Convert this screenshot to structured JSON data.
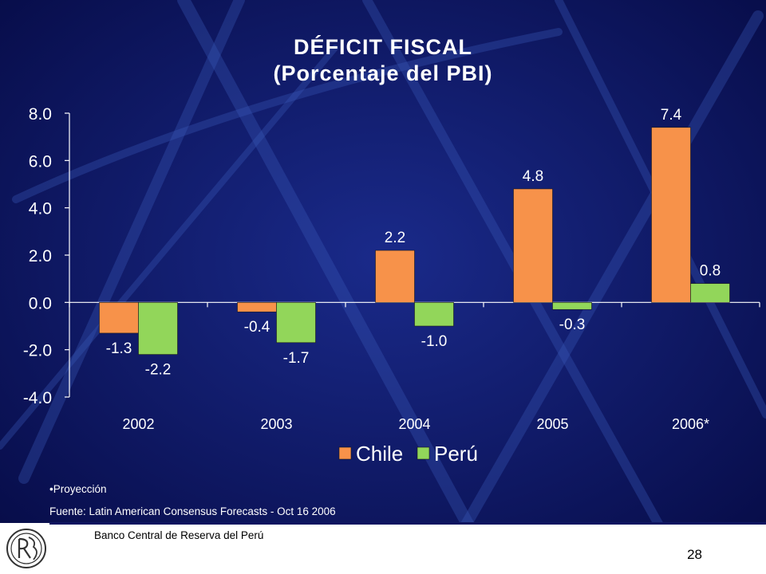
{
  "slide": {
    "title_line1": "DÉFICIT FISCAL",
    "title_line2": "(Porcentaje del PBI)",
    "note": "•Proyección",
    "source": "Fuente: Latin American Consensus Forecasts - Oct 16 2006",
    "bank": "Banco Central de Reserva del Perú",
    "page_number": "28"
  },
  "colors": {
    "background": "#0c1560",
    "chile": "#f7924a",
    "peru": "#92d65a"
  },
  "chart_data": {
    "type": "bar",
    "categories": [
      "2002",
      "2003",
      "2004",
      "2005",
      "2006*"
    ],
    "series": [
      {
        "name": "Chile",
        "values": [
          -1.3,
          -0.4,
          2.2,
          4.8,
          7.4
        ],
        "labels": [
          "-1.3",
          "-0.4",
          "2.2",
          "4.8",
          "7.4"
        ]
      },
      {
        "name": "Perú",
        "values": [
          -2.2,
          -1.7,
          -1.0,
          -0.3,
          0.8
        ],
        "labels": [
          "-2.2",
          "-1.7",
          "-1.0",
          "-0.3",
          "0.8"
        ]
      }
    ],
    "yticks": [
      "8.0",
      "6.0",
      "4.0",
      "2.0",
      "0.0",
      "-2.0",
      "-4.0"
    ],
    "ylim": [
      -4,
      8
    ],
    "legend_position": "bottom-center",
    "grid": false
  }
}
